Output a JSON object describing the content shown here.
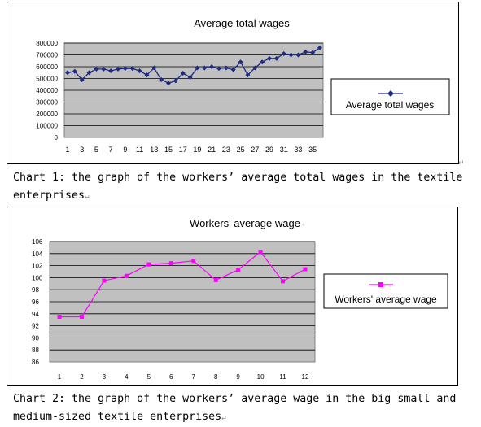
{
  "chart_data": [
    {
      "type": "line",
      "title": "Average total wages",
      "x": [
        1,
        2,
        3,
        4,
        5,
        6,
        7,
        8,
        9,
        10,
        11,
        12,
        13,
        14,
        15,
        16,
        17,
        18,
        19,
        20,
        21,
        22,
        23,
        24,
        25,
        26,
        27,
        28,
        29,
        30,
        31,
        32,
        33,
        34,
        35,
        36
      ],
      "x_tick_labels": [
        "1",
        "3",
        "5",
        "7",
        "9",
        "11",
        "13",
        "15",
        "17",
        "19",
        "21",
        "23",
        "25",
        "27",
        "29",
        "31",
        "33",
        "35"
      ],
      "y_tick_labels": [
        "0",
        "100000",
        "200000",
        "300000",
        "400000",
        "500000",
        "600000",
        "700000",
        "800000"
      ],
      "ylim": [
        0,
        800000
      ],
      "grid": true,
      "legend_position": "right",
      "series": [
        {
          "name": "Average total wages",
          "color": "#1f2a80",
          "marker": "diamond",
          "values": [
            550000,
            560000,
            490000,
            550000,
            580000,
            580000,
            565000,
            580000,
            585000,
            585000,
            565000,
            530000,
            590000,
            490000,
            460000,
            480000,
            545000,
            510000,
            590000,
            590000,
            600000,
            585000,
            590000,
            575000,
            640000,
            530000,
            590000,
            640000,
            670000,
            670000,
            710000,
            700000,
            700000,
            725000,
            720000,
            760000
          ]
        }
      ]
    },
    {
      "type": "line",
      "title": "Workers' average wage",
      "x": [
        1,
        2,
        3,
        4,
        5,
        6,
        7,
        8,
        9,
        10,
        11,
        12
      ],
      "x_tick_labels": [
        "1",
        "2",
        "3",
        "4",
        "5",
        "6",
        "7",
        "8",
        "9",
        "10",
        "11",
        "12"
      ],
      "y_tick_labels": [
        "86",
        "88",
        "90",
        "92",
        "94",
        "96",
        "98",
        "100",
        "102",
        "104",
        "106"
      ],
      "ylim": [
        86,
        106
      ],
      "grid": true,
      "legend_position": "right",
      "series": [
        {
          "name": "Workers' average wage",
          "color": "#ff00ff",
          "marker": "square",
          "values": [
            93.5,
            93.5,
            99.5,
            100.3,
            102.2,
            102.4,
            102.8,
            99.6,
            101.3,
            104.3,
            99.4,
            101.4
          ]
        }
      ]
    }
  ],
  "captions": {
    "chart1_line1": "Chart 1: the graph of the workers’  average total wages in the textile",
    "chart1_line2": "enterprises",
    "chart2_line1": "Chart 2: the graph of the workers’  average wage in the big small and",
    "chart2_line2": "medium-sized textile enterprises"
  },
  "marks": {
    "paragraph": "↵",
    "frame_title_mark": "◦"
  }
}
